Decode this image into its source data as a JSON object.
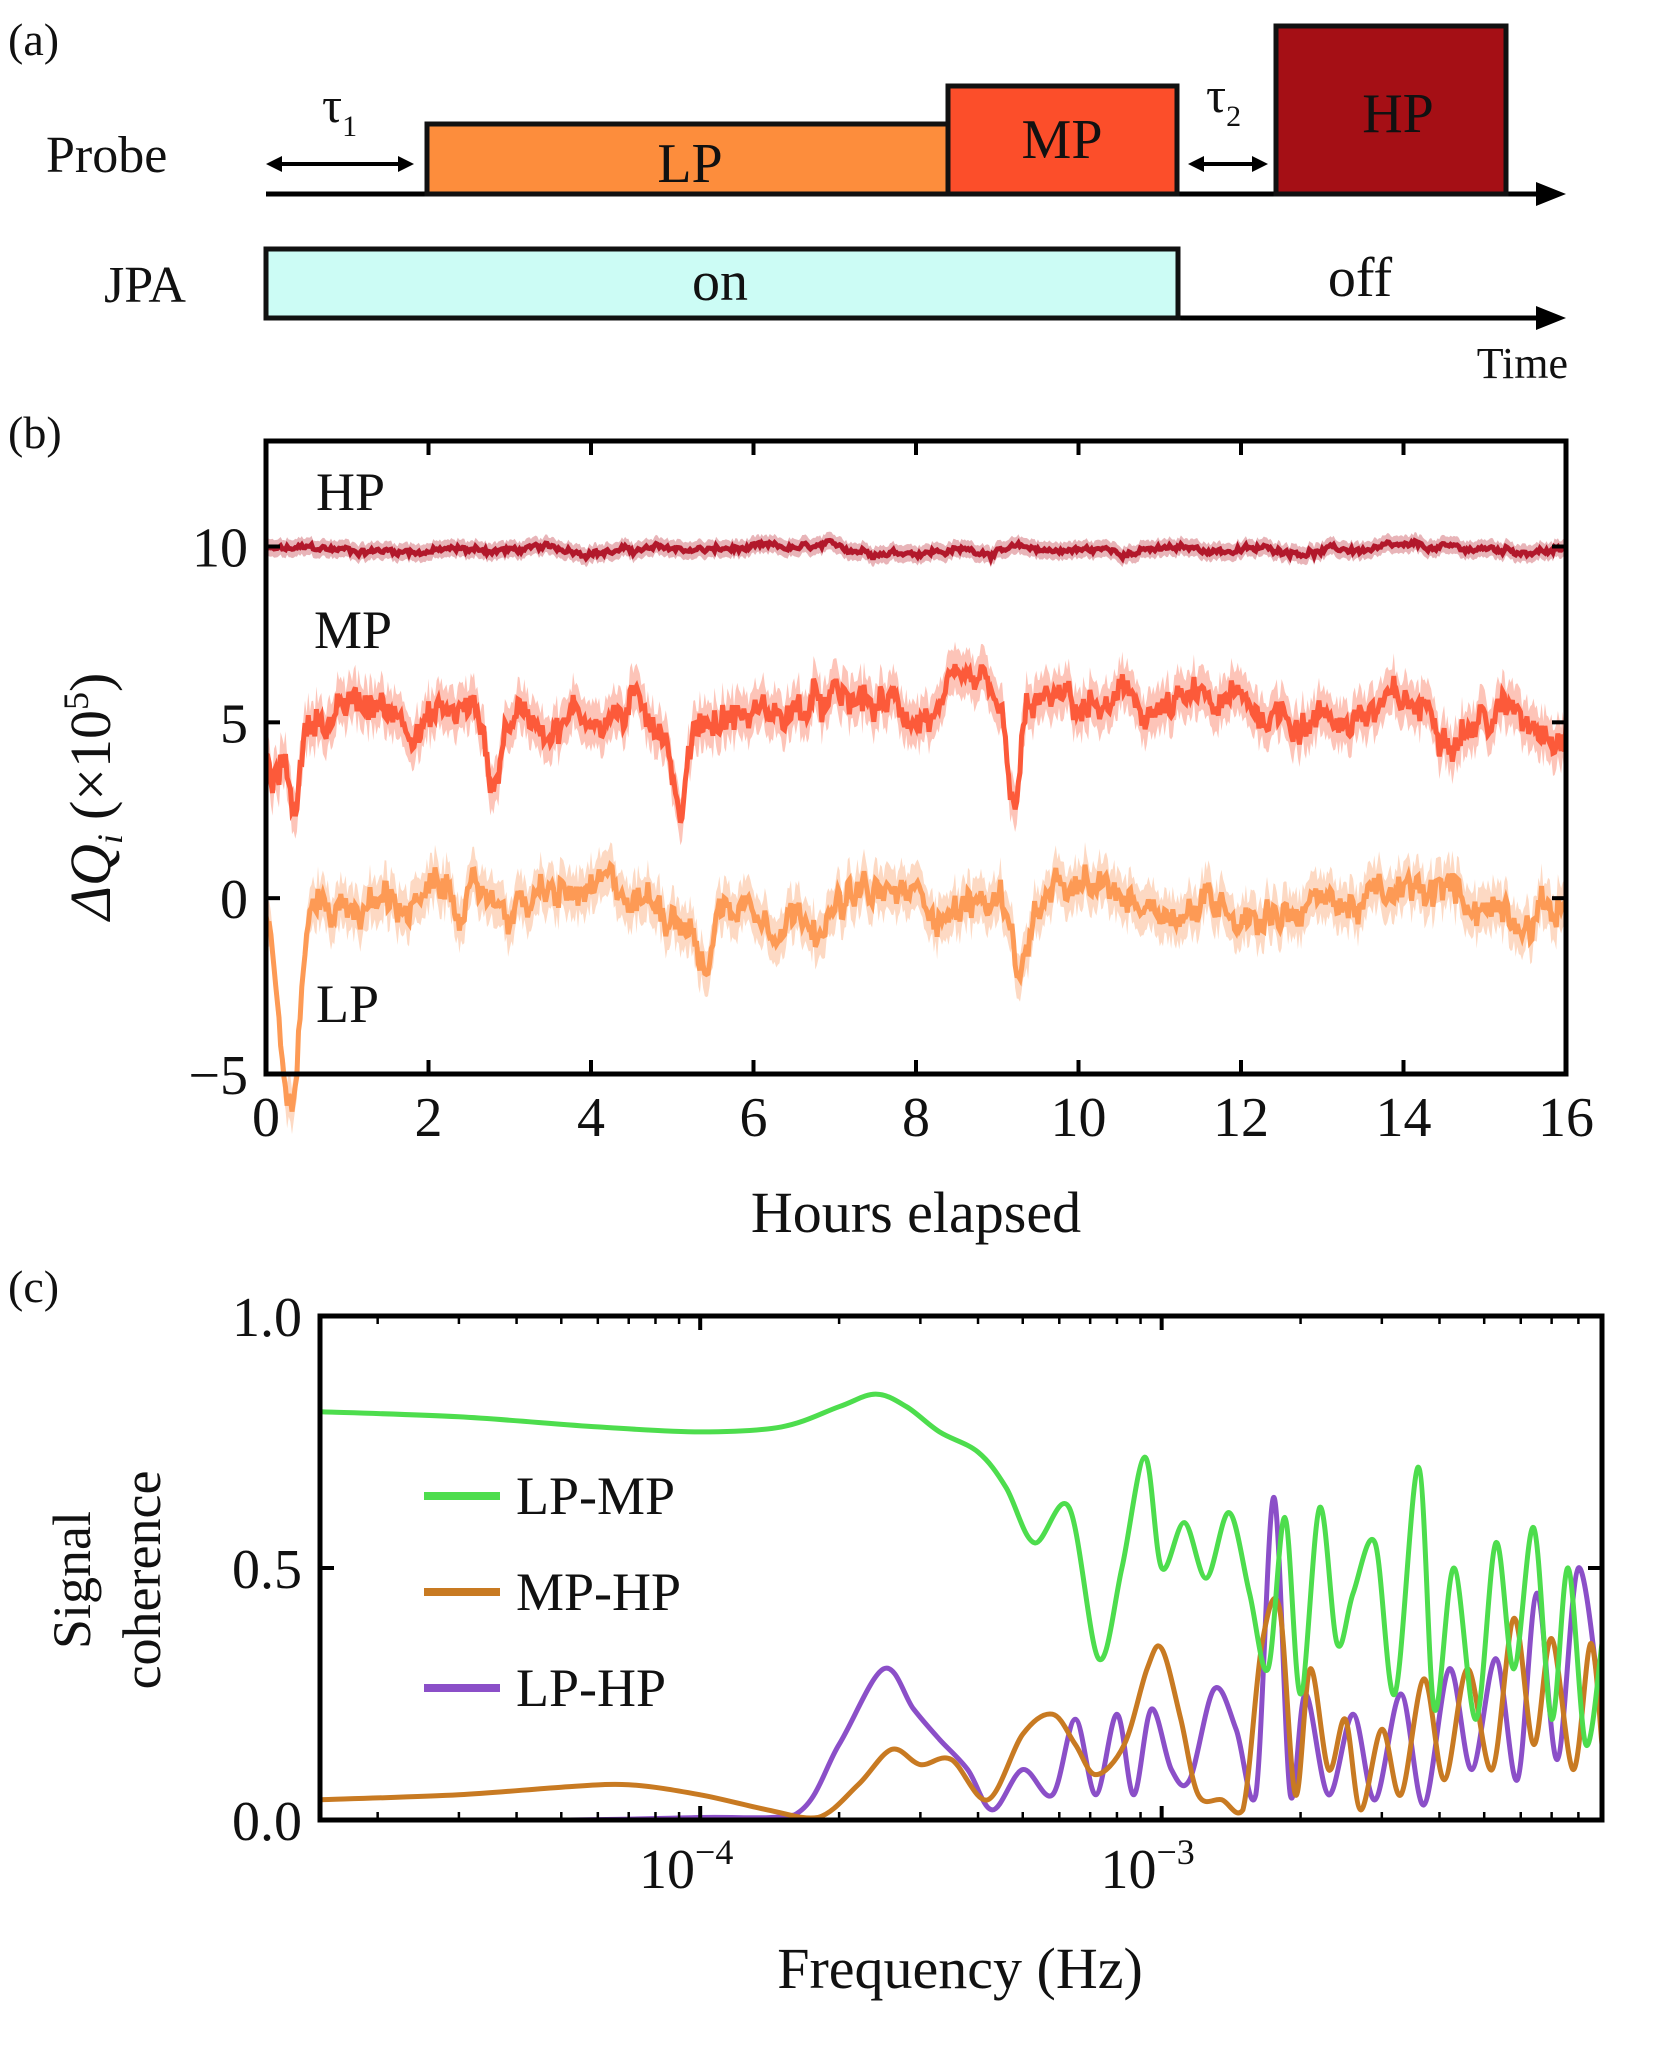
{
  "panel_a": {
    "label": "(a)",
    "probe_label": "Probe",
    "jpa_label": "JPA",
    "time_label": "Time",
    "tau1": "τ",
    "tau1_sub": "1",
    "tau2": "τ",
    "tau2_sub": "2",
    "pulses": [
      {
        "name": "LP",
        "color": "#fd8d3c"
      },
      {
        "name": "MP",
        "color": "#fc4e2a"
      },
      {
        "name": "HP",
        "color": "#a50f15"
      }
    ],
    "jpa_on": {
      "text": "on",
      "color": "#ccfcf5"
    },
    "jpa_off": "off"
  },
  "chart_data": [
    {
      "panel": "(b)",
      "type": "line",
      "title": "",
      "xlabel": "Hours elapsed",
      "ylabel": "ΔQ",
      "ylabel_sub": "i",
      "ylabel_unit": "(×10",
      "ylabel_exp": "5",
      "ylabel_close": ")",
      "xlim": [
        0,
        16
      ],
      "ylim": [
        -5,
        13
      ],
      "xticks": [
        "0",
        "2",
        "4",
        "6",
        "8",
        "10",
        "12",
        "14",
        "16"
      ],
      "yticks": [
        "−5",
        "0",
        "5",
        "10"
      ],
      "ytick_values": [
        -5,
        0,
        5,
        10
      ],
      "xtick_values": [
        0,
        2,
        4,
        6,
        8,
        10,
        12,
        14,
        16
      ],
      "annotations": [
        "HP",
        "MP",
        "LP"
      ],
      "series": [
        {
          "name": "HP",
          "color": "#b2182b",
          "band": "#e8b4b8",
          "mean": 9.9,
          "amp": 0.18,
          "dips": []
        },
        {
          "name": "MP",
          "color": "#fc5a3a",
          "band": "#fdc4b8",
          "mean": 5.3,
          "amp": 0.9,
          "dips": [
            [
              0.1,
              -2.2
            ],
            [
              0.35,
              -2.5
            ],
            [
              2.8,
              -2.0
            ],
            [
              5.1,
              -2.6
            ],
            [
              9.2,
              -3.2
            ]
          ]
        },
        {
          "name": "LP",
          "color": "#fd9a55",
          "band": "#fdd9c3",
          "mean": -0.1,
          "amp": 0.9,
          "dips": [
            [
              0.2,
              -3.5
            ],
            [
              0.35,
              -4.6
            ],
            [
              5.4,
              -1.8
            ],
            [
              9.3,
              -1.8
            ]
          ]
        }
      ]
    },
    {
      "panel": "(c)",
      "type": "line",
      "title": "",
      "xlabel": "Frequency (Hz)",
      "ylabel_line1": "Signal",
      "ylabel_line2": "coherence",
      "xscale": "log",
      "xlim": [
        1.5e-05,
        0.009
      ],
      "ylim": [
        0,
        1
      ],
      "xtick_labels": [
        "10",
        "10"
      ],
      "xtick_exps": [
        "−4",
        "−3"
      ],
      "xtick_values": [
        0.0001,
        0.001
      ],
      "yticks": [
        "0.0",
        "0.5",
        "1.0"
      ],
      "ytick_values": [
        0,
        0.5,
        1.0
      ],
      "legend_position": "left-middle",
      "series": [
        {
          "name": "LP-MP",
          "color": "#4ddd4d",
          "points": [
            [
              1.5e-05,
              0.81
            ],
            [
              3e-05,
              0.8
            ],
            [
              6e-05,
              0.78
            ],
            [
              0.0001,
              0.77
            ],
            [
              0.00015,
              0.78
            ],
            [
              0.0002,
              0.82
            ],
            [
              0.00024,
              0.845
            ],
            [
              0.00028,
              0.82
            ],
            [
              0.00033,
              0.77
            ],
            [
              0.0004,
              0.73
            ],
            [
              0.00046,
              0.66
            ],
            [
              0.00053,
              0.55
            ],
            [
              0.00063,
              0.62
            ],
            [
              0.00073,
              0.32
            ],
            [
              0.00082,
              0.5
            ],
            [
              0.00092,
              0.72
            ],
            [
              0.001,
              0.5
            ],
            [
              0.00112,
              0.59
            ],
            [
              0.00125,
              0.48
            ],
            [
              0.0014,
              0.61
            ],
            [
              0.00155,
              0.45
            ],
            [
              0.0017,
              0.3
            ],
            [
              0.00185,
              0.6
            ],
            [
              0.002,
              0.25
            ],
            [
              0.0022,
              0.62
            ],
            [
              0.0024,
              0.35
            ],
            [
              0.0026,
              0.45
            ],
            [
              0.0029,
              0.55
            ],
            [
              0.0032,
              0.25
            ],
            [
              0.0036,
              0.7
            ],
            [
              0.0039,
              0.22
            ],
            [
              0.0043,
              0.5
            ],
            [
              0.0048,
              0.2
            ],
            [
              0.0053,
              0.55
            ],
            [
              0.0058,
              0.3
            ],
            [
              0.0064,
              0.58
            ],
            [
              0.007,
              0.2
            ],
            [
              0.0076,
              0.5
            ],
            [
              0.0083,
              0.15
            ],
            [
              0.009,
              0.35
            ]
          ]
        },
        {
          "name": "MP-HP",
          "color": "#c87a22",
          "points": [
            [
              1.5e-05,
              0.04
            ],
            [
              3e-05,
              0.05
            ],
            [
              5e-05,
              0.065
            ],
            [
              7e-05,
              0.07
            ],
            [
              0.0001,
              0.05
            ],
            [
              0.00014,
              0.02
            ],
            [
              0.00018,
              0.005
            ],
            [
              0.00022,
              0.07
            ],
            [
              0.00026,
              0.14
            ],
            [
              0.0003,
              0.11
            ],
            [
              0.00035,
              0.12
            ],
            [
              0.00042,
              0.04
            ],
            [
              0.0005,
              0.17
            ],
            [
              0.00058,
              0.21
            ],
            [
              0.00065,
              0.15
            ],
            [
              0.00072,
              0.09
            ],
            [
              0.00083,
              0.15
            ],
            [
              0.00093,
              0.3
            ],
            [
              0.001,
              0.34
            ],
            [
              0.0011,
              0.2
            ],
            [
              0.0012,
              0.05
            ],
            [
              0.00135,
              0.04
            ],
            [
              0.0015,
              0.02
            ],
            [
              0.00165,
              0.35
            ],
            [
              0.0018,
              0.42
            ],
            [
              0.00195,
              0.05
            ],
            [
              0.0021,
              0.3
            ],
            [
              0.0023,
              0.1
            ],
            [
              0.0025,
              0.2
            ],
            [
              0.0027,
              0.02
            ],
            [
              0.003,
              0.18
            ],
            [
              0.0033,
              0.05
            ],
            [
              0.0037,
              0.28
            ],
            [
              0.0041,
              0.08
            ],
            [
              0.0046,
              0.3
            ],
            [
              0.0052,
              0.1
            ],
            [
              0.0058,
              0.4
            ],
            [
              0.0064,
              0.15
            ],
            [
              0.007,
              0.36
            ],
            [
              0.0078,
              0.1
            ],
            [
              0.0085,
              0.35
            ],
            [
              0.009,
              0.15
            ]
          ]
        },
        {
          "name": "LP-HP",
          "color": "#8b4fc8",
          "points": [
            [
              1.5e-05,
              0.0
            ],
            [
              5e-05,
              0.0
            ],
            [
              0.0001,
              0.005
            ],
            [
              0.00016,
              0.01
            ],
            [
              0.0002,
              0.15
            ],
            [
              0.00025,
              0.3
            ],
            [
              0.00029,
              0.22
            ],
            [
              0.00033,
              0.16
            ],
            [
              0.00038,
              0.1
            ],
            [
              0.00043,
              0.02
            ],
            [
              0.0005,
              0.1
            ],
            [
              0.00058,
              0.05
            ],
            [
              0.00065,
              0.2
            ],
            [
              0.00072,
              0.05
            ],
            [
              0.0008,
              0.21
            ],
            [
              0.00087,
              0.05
            ],
            [
              0.00095,
              0.22
            ],
            [
              0.00105,
              0.1
            ],
            [
              0.00115,
              0.08
            ],
            [
              0.0013,
              0.26
            ],
            [
              0.00145,
              0.18
            ],
            [
              0.0016,
              0.05
            ],
            [
              0.00175,
              0.64
            ],
            [
              0.0019,
              0.05
            ],
            [
              0.00205,
              0.25
            ],
            [
              0.0023,
              0.05
            ],
            [
              0.0026,
              0.21
            ],
            [
              0.0029,
              0.04
            ],
            [
              0.0033,
              0.25
            ],
            [
              0.0037,
              0.03
            ],
            [
              0.0042,
              0.3
            ],
            [
              0.0047,
              0.1
            ],
            [
              0.0053,
              0.32
            ],
            [
              0.0059,
              0.08
            ],
            [
              0.0065,
              0.45
            ],
            [
              0.0072,
              0.12
            ],
            [
              0.008,
              0.5
            ],
            [
              0.009,
              0.2
            ]
          ]
        }
      ]
    }
  ]
}
